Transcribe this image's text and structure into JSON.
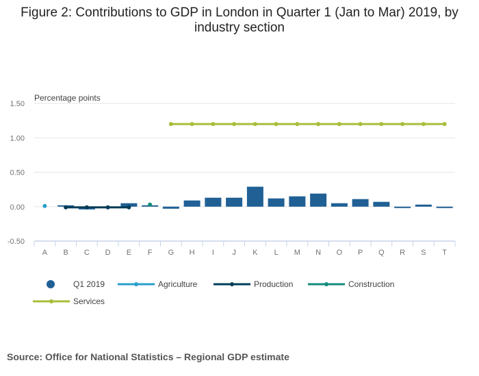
{
  "title": "Figure 2: Contributions to GDP in London in Quarter 1 (Jan to Mar) 2019, by industry section",
  "source": "Source: Office for National Statistics – Regional GDP estimate",
  "chart_data": {
    "type": "bar",
    "title": "Figure 2: Contributions to GDP in London in Quarter 1 (Jan to Mar) 2019, by industry section",
    "ylabel": "Percentage points",
    "ylim": [
      -0.5,
      1.5
    ],
    "yticks": [
      "1.50",
      "1.00",
      "0.50",
      "0.00",
      "-0.50"
    ],
    "ytick_values": [
      1.5,
      1.0,
      0.5,
      0.0,
      -0.5
    ],
    "grid": true,
    "legend_placement": "bottom",
    "categories": [
      "A",
      "B",
      "C",
      "D",
      "E",
      "F",
      "G",
      "H",
      "I",
      "J",
      "K",
      "L",
      "M",
      "N",
      "O",
      "P",
      "Q",
      "R",
      "S",
      "T"
    ],
    "series": [
      {
        "name": "Q1 2019",
        "kind": "bar",
        "color": "#206095",
        "values": [
          null,
          0.02,
          -0.04,
          0,
          0.05,
          0.02,
          -0.03,
          0.09,
          0.13,
          0.13,
          0.29,
          0.12,
          0.15,
          0.19,
          0.05,
          0.11,
          0.07,
          -0.02,
          0.03,
          -0.02
        ]
      },
      {
        "name": "Agriculture",
        "kind": "line",
        "color": "#27a0cc",
        "values": [
          0.01,
          null,
          null,
          null,
          null,
          null,
          null,
          null,
          null,
          null,
          null,
          null,
          null,
          null,
          null,
          null,
          null,
          null,
          null,
          null
        ]
      },
      {
        "name": "Production",
        "kind": "line",
        "color": "#003c57",
        "values": [
          null,
          -0.01,
          -0.01,
          -0.01,
          -0.01,
          null,
          null,
          null,
          null,
          null,
          null,
          null,
          null,
          null,
          null,
          null,
          null,
          null,
          null,
          null
        ]
      },
      {
        "name": "Construction",
        "kind": "line",
        "color": "#118c7b",
        "values": [
          null,
          null,
          null,
          null,
          null,
          0.03,
          null,
          null,
          null,
          null,
          null,
          null,
          null,
          null,
          null,
          null,
          null,
          null,
          null,
          null
        ]
      },
      {
        "name": "Services",
        "kind": "line",
        "color": "#a8bd3a",
        "values": [
          null,
          null,
          null,
          null,
          null,
          null,
          1.2,
          1.2,
          1.2,
          1.2,
          1.2,
          1.2,
          1.2,
          1.2,
          1.2,
          1.2,
          1.2,
          1.2,
          1.2,
          1.2
        ]
      }
    ]
  }
}
